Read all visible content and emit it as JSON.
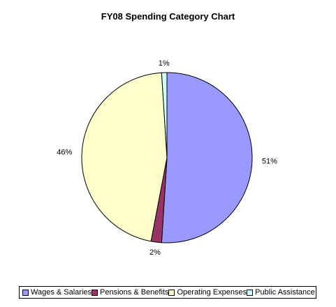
{
  "chart_data": {
    "type": "pie",
    "title": "FY08 Spending Category Chart",
    "categories": [
      "Wages & Salaries",
      "Pensions & Benefits",
      "Operating Expenses",
      "Public Assistance"
    ],
    "values": [
      51,
      2,
      46,
      1
    ],
    "labels": [
      "51%",
      "2%",
      "46%",
      "1%"
    ],
    "colors": [
      "#9999ff",
      "#993366",
      "#ffffcc",
      "#ccffff"
    ],
    "legend_position": "bottom"
  }
}
